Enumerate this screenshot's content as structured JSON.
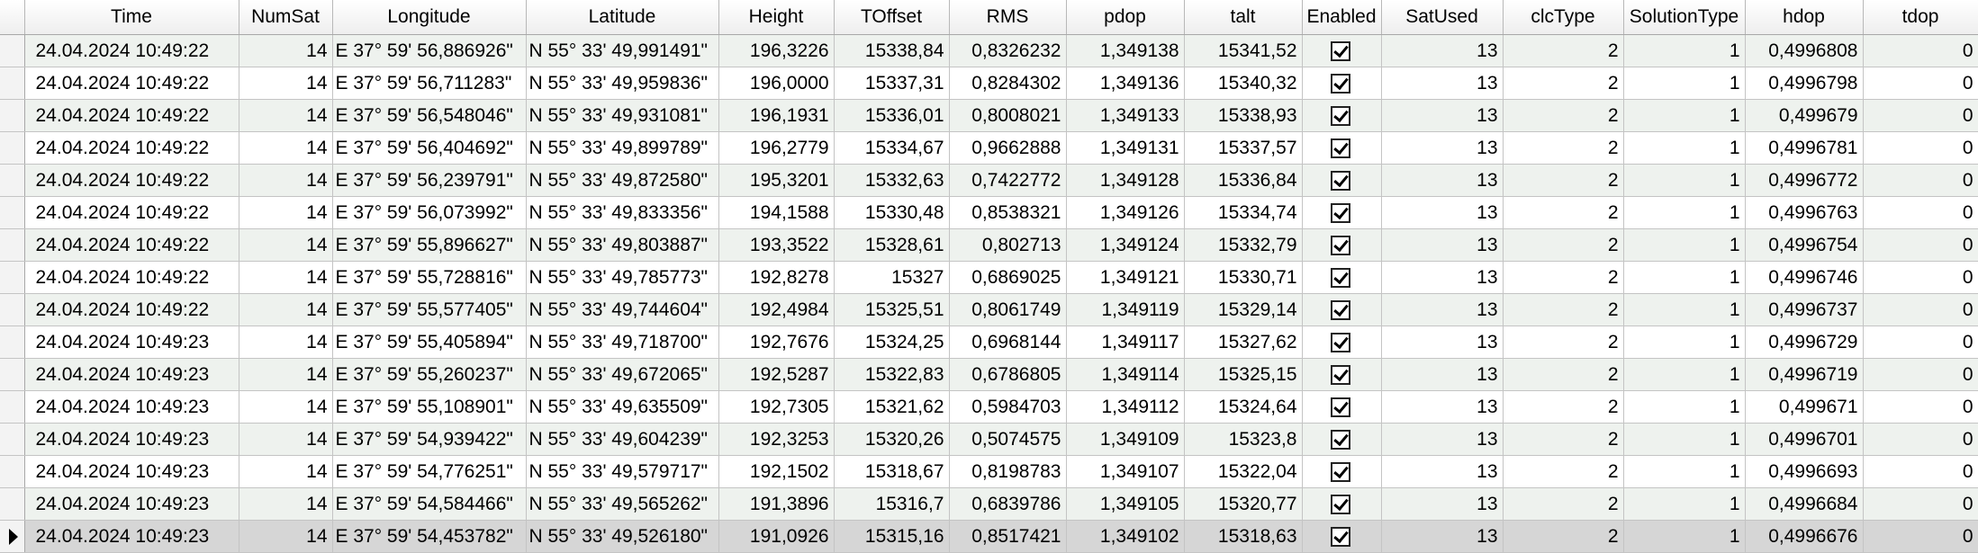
{
  "grid": {
    "columns": [
      "",
      "Time",
      "NumSat",
      "Longitude",
      "Latitude",
      "Height",
      "TOffset",
      "RMS",
      "pdop",
      "talt",
      "Enabled",
      "SatUsed",
      "clcType",
      "SolutionType",
      "hdop",
      "tdop"
    ],
    "rows": [
      {
        "time": "24.04.2024 10:49:22",
        "numsat": "14",
        "longitude": "E 37° 59' 56,886926\"",
        "latitude": "N 55° 33' 49,991491\"",
        "height": "196,3226",
        "toffset": "15338,84",
        "rms": "0,8326232",
        "pdop": "1,349138",
        "talt": "15341,52",
        "enabled": true,
        "satused": "13",
        "clctype": "2",
        "solutiontype": "1",
        "hdop": "0,4996808",
        "tdop": "0"
      },
      {
        "time": "24.04.2024 10:49:22",
        "numsat": "14",
        "longitude": "E 37° 59' 56,711283\"",
        "latitude": "N 55° 33' 49,959836\"",
        "height": "196,0000",
        "toffset": "15337,31",
        "rms": "0,8284302",
        "pdop": "1,349136",
        "talt": "15340,32",
        "enabled": true,
        "satused": "13",
        "clctype": "2",
        "solutiontype": "1",
        "hdop": "0,4996798",
        "tdop": "0"
      },
      {
        "time": "24.04.2024 10:49:22",
        "numsat": "14",
        "longitude": "E 37° 59' 56,548046\"",
        "latitude": "N 55° 33' 49,931081\"",
        "height": "196,1931",
        "toffset": "15336,01",
        "rms": "0,8008021",
        "pdop": "1,349133",
        "talt": "15338,93",
        "enabled": true,
        "satused": "13",
        "clctype": "2",
        "solutiontype": "1",
        "hdop": "0,499679",
        "tdop": "0"
      },
      {
        "time": "24.04.2024 10:49:22",
        "numsat": "14",
        "longitude": "E 37° 59' 56,404692\"",
        "latitude": "N 55° 33' 49,899789\"",
        "height": "196,2779",
        "toffset": "15334,67",
        "rms": "0,9662888",
        "pdop": "1,349131",
        "talt": "15337,57",
        "enabled": true,
        "satused": "13",
        "clctype": "2",
        "solutiontype": "1",
        "hdop": "0,4996781",
        "tdop": "0"
      },
      {
        "time": "24.04.2024 10:49:22",
        "numsat": "14",
        "longitude": "E 37° 59' 56,239791\"",
        "latitude": "N 55° 33' 49,872580\"",
        "height": "195,3201",
        "toffset": "15332,63",
        "rms": "0,7422772",
        "pdop": "1,349128",
        "talt": "15336,84",
        "enabled": true,
        "satused": "13",
        "clctype": "2",
        "solutiontype": "1",
        "hdop": "0,4996772",
        "tdop": "0"
      },
      {
        "time": "24.04.2024 10:49:22",
        "numsat": "14",
        "longitude": "E 37° 59' 56,073992\"",
        "latitude": "N 55° 33' 49,833356\"",
        "height": "194,1588",
        "toffset": "15330,48",
        "rms": "0,8538321",
        "pdop": "1,349126",
        "talt": "15334,74",
        "enabled": true,
        "satused": "13",
        "clctype": "2",
        "solutiontype": "1",
        "hdop": "0,4996763",
        "tdop": "0"
      },
      {
        "time": "24.04.2024 10:49:22",
        "numsat": "14",
        "longitude": "E 37° 59' 55,896627\"",
        "latitude": "N 55° 33' 49,803887\"",
        "height": "193,3522",
        "toffset": "15328,61",
        "rms": "0,802713",
        "pdop": "1,349124",
        "talt": "15332,79",
        "enabled": true,
        "satused": "13",
        "clctype": "2",
        "solutiontype": "1",
        "hdop": "0,4996754",
        "tdop": "0"
      },
      {
        "time": "24.04.2024 10:49:22",
        "numsat": "14",
        "longitude": "E 37° 59' 55,728816\"",
        "latitude": "N 55° 33' 49,785773\"",
        "height": "192,8278",
        "toffset": "15327",
        "rms": "0,6869025",
        "pdop": "1,349121",
        "talt": "15330,71",
        "enabled": true,
        "satused": "13",
        "clctype": "2",
        "solutiontype": "1",
        "hdop": "0,4996746",
        "tdop": "0"
      },
      {
        "time": "24.04.2024 10:49:22",
        "numsat": "14",
        "longitude": "E 37° 59' 55,577405\"",
        "latitude": "N 55° 33' 49,744604\"",
        "height": "192,4984",
        "toffset": "15325,51",
        "rms": "0,8061749",
        "pdop": "1,349119",
        "talt": "15329,14",
        "enabled": true,
        "satused": "13",
        "clctype": "2",
        "solutiontype": "1",
        "hdop": "0,4996737",
        "tdop": "0"
      },
      {
        "time": "24.04.2024 10:49:23",
        "numsat": "14",
        "longitude": "E 37° 59' 55,405894\"",
        "latitude": "N 55° 33' 49,718700\"",
        "height": "192,7676",
        "toffset": "15324,25",
        "rms": "0,6968144",
        "pdop": "1,349117",
        "talt": "15327,62",
        "enabled": true,
        "satused": "13",
        "clctype": "2",
        "solutiontype": "1",
        "hdop": "0,4996729",
        "tdop": "0"
      },
      {
        "time": "24.04.2024 10:49:23",
        "numsat": "14",
        "longitude": "E 37° 59' 55,260237\"",
        "latitude": "N 55° 33' 49,672065\"",
        "height": "192,5287",
        "toffset": "15322,83",
        "rms": "0,6786805",
        "pdop": "1,349114",
        "talt": "15325,15",
        "enabled": true,
        "satused": "13",
        "clctype": "2",
        "solutiontype": "1",
        "hdop": "0,4996719",
        "tdop": "0"
      },
      {
        "time": "24.04.2024 10:49:23",
        "numsat": "14",
        "longitude": "E 37° 59' 55,108901\"",
        "latitude": "N 55° 33' 49,635509\"",
        "height": "192,7305",
        "toffset": "15321,62",
        "rms": "0,5984703",
        "pdop": "1,349112",
        "talt": "15324,64",
        "enabled": true,
        "satused": "13",
        "clctype": "2",
        "solutiontype": "1",
        "hdop": "0,499671",
        "tdop": "0"
      },
      {
        "time": "24.04.2024 10:49:23",
        "numsat": "14",
        "longitude": "E 37° 59' 54,939422\"",
        "latitude": "N 55° 33' 49,604239\"",
        "height": "192,3253",
        "toffset": "15320,26",
        "rms": "0,5074575",
        "pdop": "1,349109",
        "talt": "15323,8",
        "enabled": true,
        "satused": "13",
        "clctype": "2",
        "solutiontype": "1",
        "hdop": "0,4996701",
        "tdop": "0"
      },
      {
        "time": "24.04.2024 10:49:23",
        "numsat": "14",
        "longitude": "E 37° 59' 54,776251\"",
        "latitude": "N 55° 33' 49,579717\"",
        "height": "192,1502",
        "toffset": "15318,67",
        "rms": "0,8198783",
        "pdop": "1,349107",
        "talt": "15322,04",
        "enabled": true,
        "satused": "13",
        "clctype": "2",
        "solutiontype": "1",
        "hdop": "0,4996693",
        "tdop": "0"
      },
      {
        "time": "24.04.2024 10:49:23",
        "numsat": "14",
        "longitude": "E 37° 59' 54,584466\"",
        "latitude": "N 55° 33' 49,565262\"",
        "height": "191,3896",
        "toffset": "15316,7",
        "rms": "0,6839786",
        "pdop": "1,349105",
        "talt": "15320,77",
        "enabled": true,
        "satused": "13",
        "clctype": "2",
        "solutiontype": "1",
        "hdop": "0,4996684",
        "tdop": "0"
      },
      {
        "time": "24.04.2024 10:49:23",
        "numsat": "14",
        "longitude": "E 37° 59' 54,453782\"",
        "latitude": "N 55° 33' 49,526180\"",
        "height": "191,0926",
        "toffset": "15315,16",
        "rms": "0,8517421",
        "pdop": "1,349102",
        "talt": "15318,63",
        "enabled": true,
        "satused": "13",
        "clctype": "2",
        "solutiontype": "1",
        "hdop": "0,4996676",
        "tdop": "0",
        "current": true
      }
    ]
  },
  "icons": {
    "row_indicator": "current-row-arrow-icon",
    "checkbox": "checkbox-checked-icon"
  }
}
